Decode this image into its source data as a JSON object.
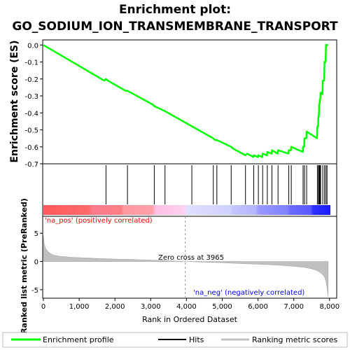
{
  "title_line1": "Enrichment plot:",
  "title_line2": "GO_SODIUM_ION_TRANSMEMBRANE_TRANSPORT",
  "chart_data": {
    "type": "line",
    "panels": [
      {
        "name": "enrichment",
        "ylabel": "Enrichment score (ES)",
        "ylim": [
          -0.7,
          0.03
        ],
        "yticks": [
          "0.0",
          "-0.1",
          "-0.2",
          "-0.3",
          "-0.4",
          "-0.5",
          "-0.6",
          "-0.7"
        ],
        "series": [
          {
            "name": "Enrichment profile",
            "color": "#00ff00",
            "x": [
              0,
              1700,
              1750,
              1800,
              2300,
              2350,
              3050,
              3100,
              3400,
              4750,
              4800,
              4850,
              5250,
              5300,
              5650,
              5700,
              5870,
              5880,
              6000,
              6010,
              6120,
              6130,
              6250,
              6260,
              6380,
              6390,
              6550,
              6560,
              6850,
              6860,
              6920,
              6930,
              7250,
              7260,
              7290,
              7300,
              7350,
              7360,
              7650,
              7660,
              7680,
              7690,
              7700,
              7710,
              7720,
              7730,
              7740,
              7750,
              7800,
              7810,
              7850,
              7860,
              7890,
              7900,
              7920,
              7930,
              7960
            ],
            "y": [
              0.0,
              -0.21,
              -0.2,
              -0.21,
              -0.27,
              -0.27,
              -0.35,
              -0.36,
              -0.39,
              -0.55,
              -0.56,
              -0.56,
              -0.6,
              -0.61,
              -0.65,
              -0.64,
              -0.66,
              -0.65,
              -0.66,
              -0.65,
              -0.66,
              -0.64,
              -0.65,
              -0.63,
              -0.64,
              -0.62,
              -0.64,
              -0.62,
              -0.64,
              -0.62,
              -0.62,
              -0.6,
              -0.63,
              -0.6,
              -0.6,
              -0.55,
              -0.55,
              -0.51,
              -0.55,
              -0.48,
              -0.48,
              -0.42,
              -0.42,
              -0.35,
              -0.35,
              -0.32,
              -0.32,
              -0.28,
              -0.29,
              -0.21,
              -0.21,
              -0.1,
              -0.1,
              0.0,
              0.0,
              0.0,
              0.0
            ]
          }
        ]
      },
      {
        "name": "hits",
        "series": [
          {
            "name": "Hits",
            "color": "#000000",
            "x": [
              1750,
              2350,
              3100,
              3400,
              4150,
              4750,
              4850,
              5250,
              5650,
              5880,
              6010,
              6130,
              6260,
              6390,
              6560,
              6860,
              6930,
              7260,
              7300,
              7360,
              7660,
              7690,
              7710,
              7730,
              7750,
              7810,
              7860,
              7900,
              7930
            ]
          }
        ]
      },
      {
        "name": "ranked_metric",
        "ylabel": "Ranked list metric (PreRanked)",
        "ylim": [
          -6.5,
          8
        ],
        "yticks": [
          "5",
          "0",
          "-5"
        ],
        "series": [
          {
            "name": "Ranking metric scores",
            "color": "#c0c0c0",
            "x": [
              0,
              20,
              60,
              120,
              200,
              300,
              500,
              800,
              1200,
              1600,
              2000,
              2500,
              3000,
              3500,
              3965,
              4500,
              5000,
              5500,
              6000,
              6500,
              7000,
              7300,
              7500,
              7650,
              7750,
              7820,
              7870,
              7900,
              7930,
              7960
            ],
            "y": [
              4.6,
              3.2,
              2.3,
              1.8,
              1.4,
              1.1,
              0.9,
              0.75,
              0.62,
              0.52,
              0.44,
              0.35,
              0.25,
              0.12,
              0.0,
              -0.1,
              -0.22,
              -0.35,
              -0.48,
              -0.62,
              -0.85,
              -1.05,
              -1.3,
              -1.6,
              -2.0,
              -2.4,
              -2.9,
              -3.5,
              -4.6,
              -6.2
            ]
          }
        ]
      }
    ],
    "xlabel": "Rank in Ordered Dataset",
    "xlim": [
      0,
      8200
    ],
    "xticks": [
      "0",
      "1,000",
      "2,000",
      "3,000",
      "4,000",
      "5,000",
      "6,000",
      "7,000",
      "8,000"
    ],
    "annotations": {
      "na_pos": "'na_pos' (positively correlated)",
      "na_neg": "'na_neg' (negatively correlated)",
      "zero_cross": "Zero cross at 3965"
    },
    "zero_cross_rank": 3965,
    "legend": [
      {
        "label": "Enrichment profile",
        "color": "#00ff00"
      },
      {
        "label": "Hits",
        "color": "#000000"
      },
      {
        "label": "Ranking metric scores",
        "color": "#c0c0c0"
      }
    ],
    "legend_placement": "bottom",
    "colors": {
      "profile": "#00ff00",
      "pos_label": "#ff0000",
      "neg_label": "#0000ff",
      "heat_pos": "#ff5050",
      "heat_neg": "#5050ff"
    }
  }
}
